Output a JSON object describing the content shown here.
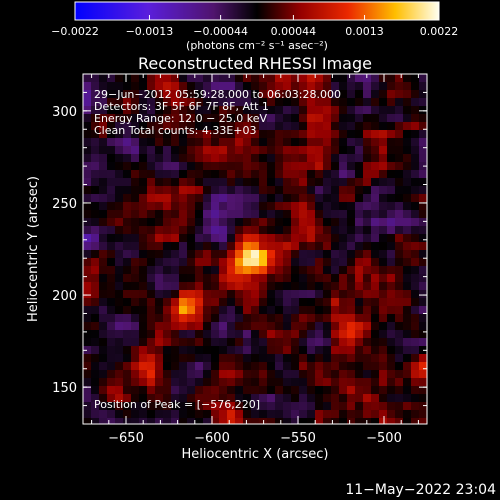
{
  "chart_data": {
    "type": "heatmap",
    "title": "Reconstructed RHESSI Image",
    "xlabel": "Heliocentric X (arcsec)",
    "ylabel": "Heliocentric Y (arcsec)",
    "xlim": [
      -675,
      -475
    ],
    "ylim": [
      130,
      320
    ],
    "xticks": [
      -650,
      -600,
      -550,
      -500
    ],
    "xtick_labels": [
      "−650",
      "−600",
      "−550",
      "−500"
    ],
    "yticks": [
      150,
      200,
      250,
      300
    ],
    "ytick_labels": [
      "150",
      "200",
      "250",
      "300"
    ],
    "colorbar": {
      "range": [
        -0.0022,
        0.0022
      ],
      "ticks": [
        -0.0022,
        -0.0013,
        -0.00044,
        0.00044,
        0.0013,
        0.0022
      ],
      "tick_labels": [
        "−0.0022",
        "−0.0013",
        "−0.00044",
        "0.00044",
        "0.0013",
        "0.0022"
      ],
      "unit_label": "(photons cm⁻² s⁻¹ asec⁻²)"
    },
    "annotations": [
      "29−Jun−2012 05:59:28.000 to 06:03:28.000",
      "Detectors: 3F 5F 6F 7F 8F, Att 1",
      "Energy Range: 12.0 − 25.0 keV",
      "Clean     Total counts: 4.33E+03"
    ],
    "peak_label": "Position of Peak = [−576,220]",
    "peak": {
      "x": -576,
      "y": 220,
      "value": 0.0022
    },
    "secondary_sources": [
      {
        "x": -613,
        "y": 196,
        "value": 0.0012
      },
      {
        "x": -520,
        "y": 180,
        "value": 0.001
      },
      {
        "x": -640,
        "y": 160,
        "value": 0.0009
      },
      {
        "x": -538,
        "y": 282,
        "value": 0.0008
      }
    ],
    "grid": false
  },
  "footer": {
    "timestamp": "11−May−2022 23:04"
  }
}
